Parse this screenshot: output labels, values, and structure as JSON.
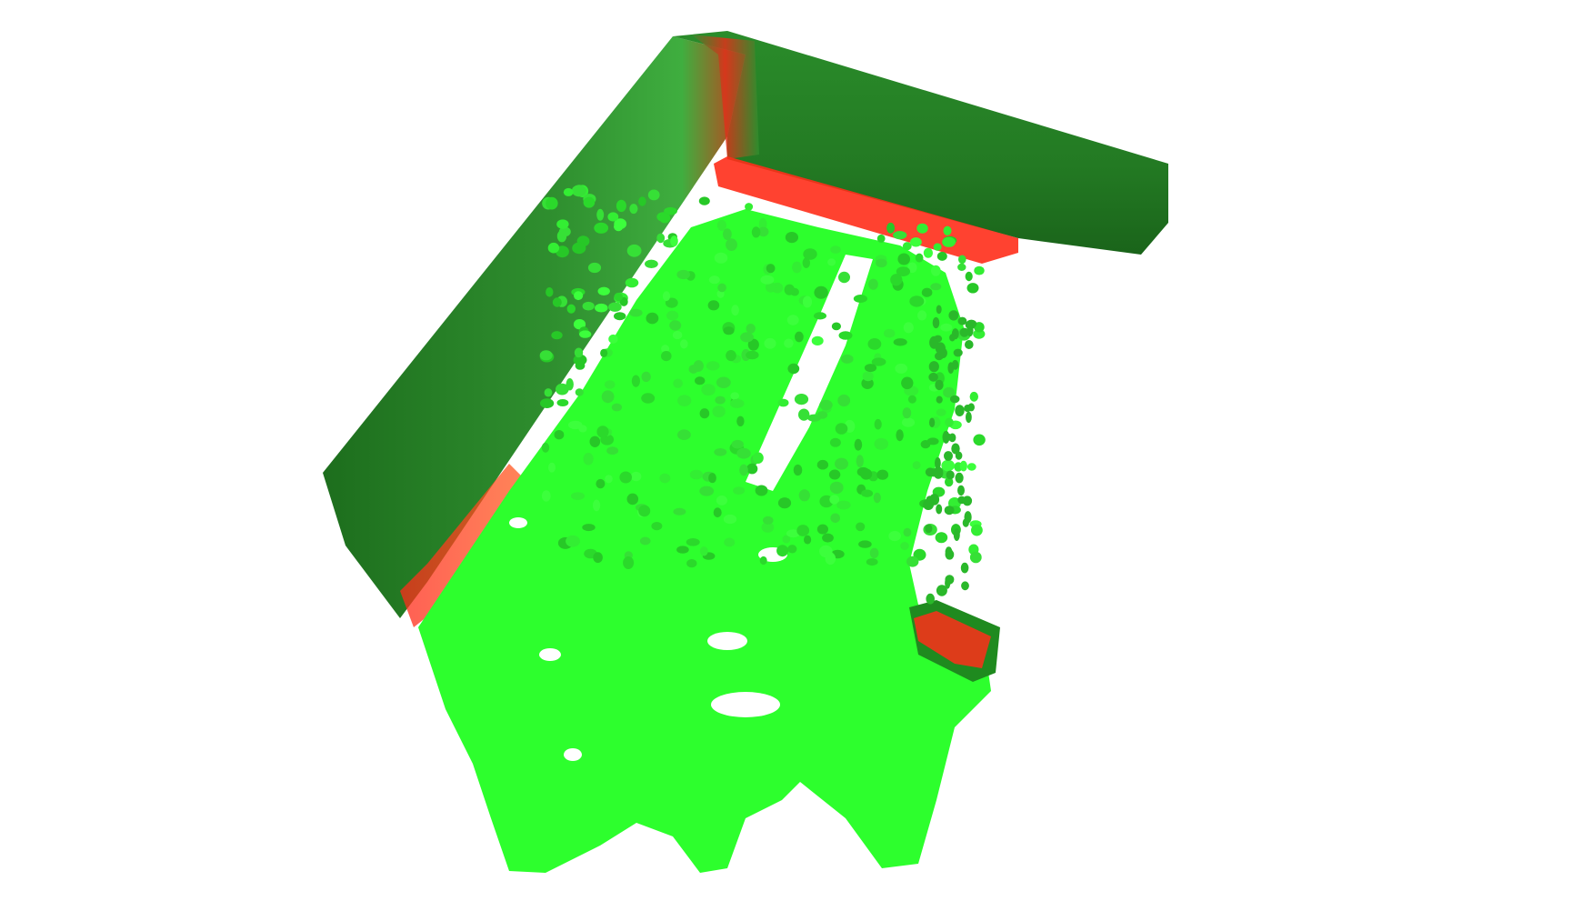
{
  "scene": {
    "background": "#ffffff",
    "subject": "point-cloud",
    "colors": {
      "floor_bright": "#2dff2d",
      "floor_mid": "#22e622",
      "wall_dark": "#1f7a1f",
      "wall_mid": "#2e9a2e",
      "edge_red": "#ff2a1a"
    }
  }
}
